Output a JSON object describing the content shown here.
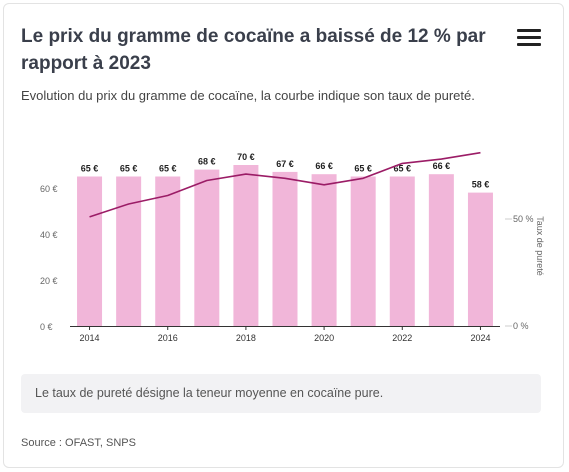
{
  "header": {
    "title": "Le prix du gramme de cocaïne a baissé de 12 % par rapport à 2023",
    "subtitle": "Evolution du prix du gramme de cocaïne, la courbe indique son taux de pureté.",
    "menu_icon": "hamburger-menu-icon"
  },
  "chart_data": {
    "type": "bar",
    "categories": [
      "2014",
      "2015",
      "2016",
      "2017",
      "2018",
      "2019",
      "2020",
      "2021",
      "2022",
      "2023",
      "2024"
    ],
    "x_tick_labels": [
      "2014",
      "2016",
      "2018",
      "2020",
      "2022",
      "2024"
    ],
    "series": [
      {
        "type": "bar",
        "values": [
          65,
          65,
          65,
          68,
          70,
          67,
          66,
          65,
          65,
          66,
          58
        ],
        "data_labels": [
          "65 €",
          "65 €",
          "65 €",
          "68 €",
          "70 €",
          "67 €",
          "66 €",
          "65 €",
          "65 €",
          "66 €",
          "58 €"
        ],
        "color": "#f1b6d9",
        "axis": "left"
      },
      {
        "type": "line",
        "values": [
          51,
          57,
          61,
          68,
          71,
          69,
          66,
          69,
          76,
          78,
          81
        ],
        "color": "#9b1c66",
        "axis": "right"
      }
    ],
    "y_left": {
      "ylim": [
        0,
        75
      ],
      "ticks": [
        0,
        20,
        40,
        60
      ],
      "tick_labels": [
        "0 €",
        "20 €",
        "40 €",
        "60 €"
      ]
    },
    "y_right": {
      "ylim": [
        0,
        100
      ],
      "ticks": [
        0,
        50
      ],
      "tick_labels": [
        "0 %",
        "50 %"
      ],
      "label": "Taux de pureté"
    },
    "grid": false,
    "legend": "none"
  },
  "note": "Le taux de pureté désigne la teneur moyenne en cocaïne pure.",
  "source": "Source : OFAST, SNPS"
}
